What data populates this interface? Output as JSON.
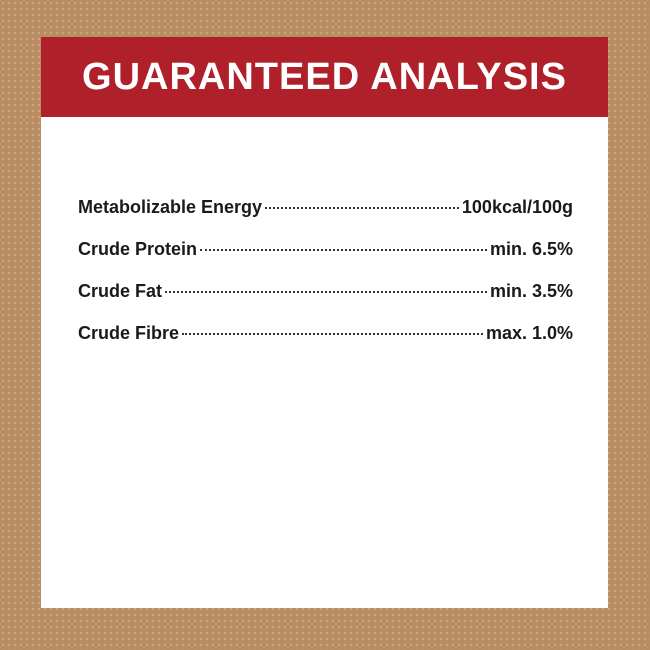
{
  "title": "GUARANTEED ANALYSIS",
  "rows": [
    {
      "label": "Metabolizable Energy",
      "value": "100kcal/100g"
    },
    {
      "label": "Crude Protein",
      "value": "min. 6.5%"
    },
    {
      "label": "Crude Fat",
      "value": "min. 3.5%"
    },
    {
      "label": "Crude Fibre",
      "value": "max. 1.0%"
    }
  ]
}
